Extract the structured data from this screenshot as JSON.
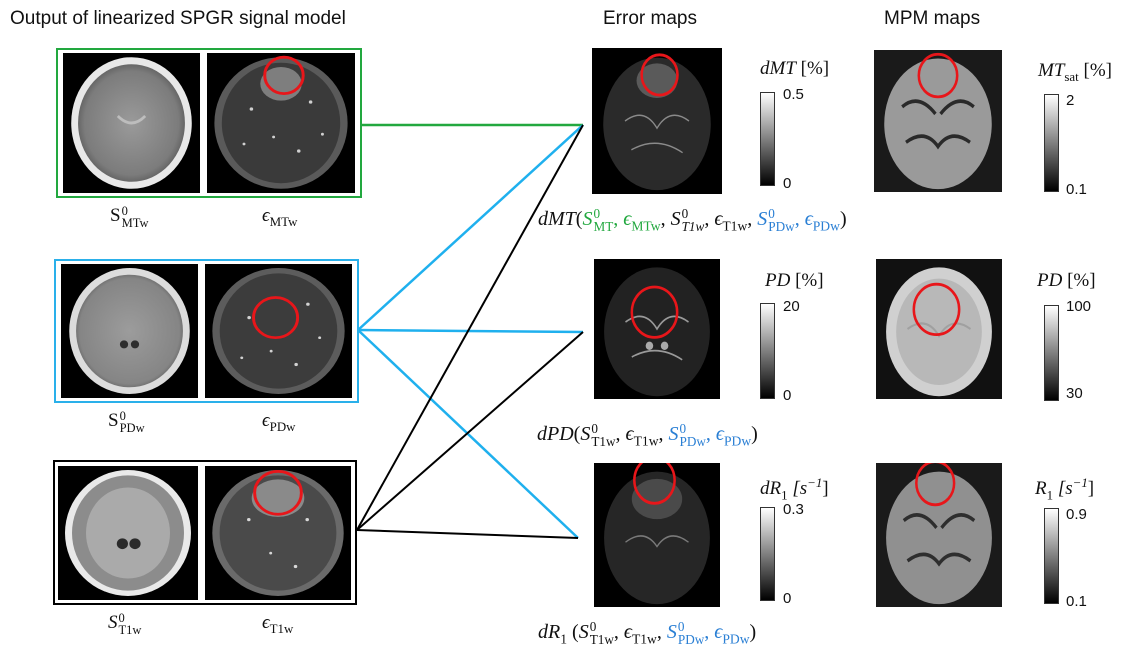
{
  "headers": {
    "left": "Output of linearized SPGR signal model",
    "error": "Error maps",
    "mpm": "MPM maps"
  },
  "colors": {
    "mtw_group": "#22a83f",
    "pdw_group": "#2ab0ea",
    "t1w_group": "#000000",
    "link_blue": "#1fb0ee",
    "circle": "#e8161a",
    "formula_green": "#22a83f",
    "formula_blue": "#2a7fd4"
  },
  "signal_rows": [
    {
      "signal_base": "S",
      "signal_sup": "0",
      "signal_sub": "MTw",
      "noise_base": "ϵ",
      "noise_sub": "MTw"
    },
    {
      "signal_base": "S",
      "signal_sup": "0",
      "signal_sub": "PDw",
      "noise_base": "ϵ",
      "noise_sub": "PDw"
    },
    {
      "signal_base": "S",
      "signal_sup": "0",
      "signal_sub": "T1w",
      "noise_base": "ϵ",
      "noise_sub": "T1w"
    }
  ],
  "error_maps": [
    {
      "title_base": "dMT",
      "title_unit": "[%]",
      "tick_max": "0.5",
      "tick_min": "0"
    },
    {
      "title_base": "PD",
      "title_unit": "[%]",
      "tick_max": "20",
      "tick_min": "0"
    },
    {
      "title_base": "dR",
      "title_sub": "1",
      "title_unit": "[s",
      "title_sup": "−1",
      "title_end": "]",
      "tick_max": "0.3",
      "tick_min": "0"
    }
  ],
  "mpm_maps": [
    {
      "title_base": "MT",
      "title_sub": "sat",
      "title_unit": "[%]",
      "tick_max": "2",
      "tick_min": "0.1"
    },
    {
      "title_base": "PD",
      "title_unit": "[%]",
      "tick_max": "100",
      "tick_min": "30"
    },
    {
      "title_base": "R",
      "title_sub": "1",
      "title_unit": "[s",
      "title_sup": "−1",
      "title_end": "]",
      "tick_max": "0.9",
      "tick_min": "0.1"
    }
  ],
  "formulas": {
    "dmt_fn": "dMT",
    "dpd_fn": "dPD",
    "dr1_fn": "dR",
    "dr1_sub": "1",
    "s": "S",
    "eps": "ϵ",
    "zero": "0",
    "mt": "MT",
    "mtw": "MTw",
    "t1w": "T1w",
    "t1w_italic": "T1w",
    "pdw": "PDw",
    "open": "(",
    "close": ")",
    "comma": ","
  }
}
